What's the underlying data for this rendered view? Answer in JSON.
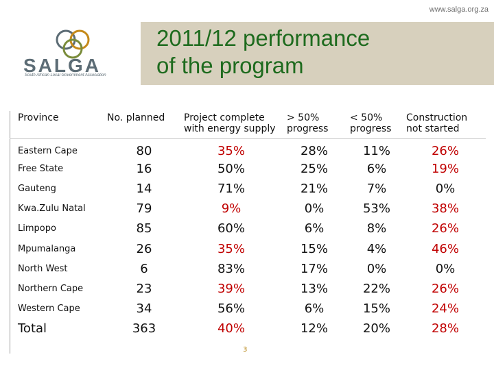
{
  "header": {
    "url": "www.salga.org.za",
    "logo_word": "SALGA",
    "logo_tagline": "South African Local Government Association",
    "title_line1": "2011/12 performance",
    "title_line2": "of the program"
  },
  "table": {
    "headers": {
      "province": "Province",
      "planned": "No. planned",
      "complete": "Project complete with energy supply",
      "gt50": "> 50% progress",
      "lt50": "< 50% progress",
      "not_started": "Construction not started"
    },
    "rows": [
      {
        "province": "Eastern Cape",
        "planned": "80",
        "complete": "35%",
        "gt50": "28%",
        "lt50": "11%",
        "not_started": "26%"
      },
      {
        "province": "Free State",
        "planned": "16",
        "complete": "50%",
        "gt50": "25%",
        "lt50": "6%",
        "not_started": "19%"
      },
      {
        "province": "Gauteng",
        "planned": "14",
        "complete": "71%",
        "gt50": "21%",
        "lt50": "7%",
        "not_started": "0%"
      },
      {
        "province": "Kwa.Zulu Natal",
        "planned": "79",
        "complete": "9%",
        "gt50": "0%",
        "lt50": "53%",
        "not_started": "38%"
      },
      {
        "province": "Limpopo",
        "planned": "85",
        "complete": "60%",
        "gt50": "6%",
        "lt50": "8%",
        "not_started": "26%"
      },
      {
        "province": "Mpumalanga",
        "planned": "26",
        "complete": "35%",
        "gt50": "15%",
        "lt50": "4%",
        "not_started": "46%"
      },
      {
        "province": "North West",
        "planned": "6",
        "complete": "83%",
        "gt50": "17%",
        "lt50": "0%",
        "not_started": "0%"
      },
      {
        "province": "Northern Cape",
        "planned": "23",
        "complete": "39%",
        "gt50": "13%",
        "lt50": "22%",
        "not_started": "26%"
      },
      {
        "province": "Western Cape",
        "planned": "34",
        "complete": "56%",
        "gt50": "6%",
        "lt50": "15%",
        "not_started": "24%"
      }
    ],
    "total": {
      "province": "Total",
      "planned": "363",
      "complete": "40%",
      "gt50": "12%",
      "lt50": "20%",
      "not_started": "28%"
    }
  },
  "page_number": "3",
  "colors": {
    "title": "#1e6b1e",
    "highlight": "#c00000",
    "band": "#d7d0bd"
  }
}
